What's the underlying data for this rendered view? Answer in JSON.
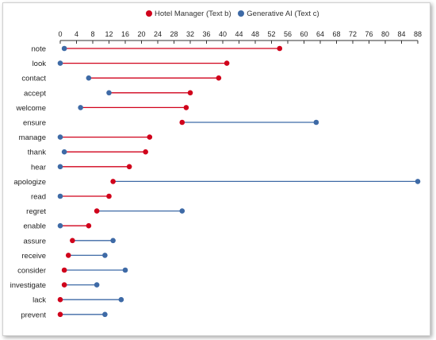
{
  "legend": {
    "a": {
      "label": "Hotel Manager (Text b)",
      "color": "#d0021b"
    },
    "b": {
      "label": "Generative AI (Text c)",
      "color": "#3e6aa6"
    }
  },
  "chart_data": {
    "type": "dumbbell",
    "xlim": [
      0,
      88
    ],
    "xticks": [
      "0",
      "4",
      "8",
      "12",
      "16",
      "20",
      "24",
      "28",
      "32",
      "36",
      "40",
      "44",
      "48",
      "52",
      "56",
      "60",
      "64",
      "68",
      "72",
      "76",
      "80",
      "84",
      "88"
    ],
    "grid": false,
    "legend_position": "top",
    "categories": [
      "note",
      "look",
      "contact",
      "accept",
      "welcome",
      "ensure",
      "manage",
      "thank",
      "hear",
      "apologize",
      "read",
      "regret",
      "enable",
      "assure",
      "receive",
      "consider",
      "investigate",
      "lack",
      "prevent"
    ],
    "series": [
      {
        "name": "Hotel Manager (Text b)",
        "color": "#d0021b",
        "values": [
          54,
          41,
          39,
          32,
          31,
          30,
          22,
          21,
          17,
          13,
          12,
          9,
          7,
          3,
          2,
          1,
          1,
          0,
          0
        ]
      },
      {
        "name": "Generative AI (Text c)",
        "color": "#3e6aa6",
        "values": [
          1,
          0,
          7,
          12,
          5,
          63,
          0,
          1,
          0,
          88,
          0,
          30,
          0,
          13,
          11,
          16,
          9,
          15,
          11
        ]
      }
    ]
  }
}
